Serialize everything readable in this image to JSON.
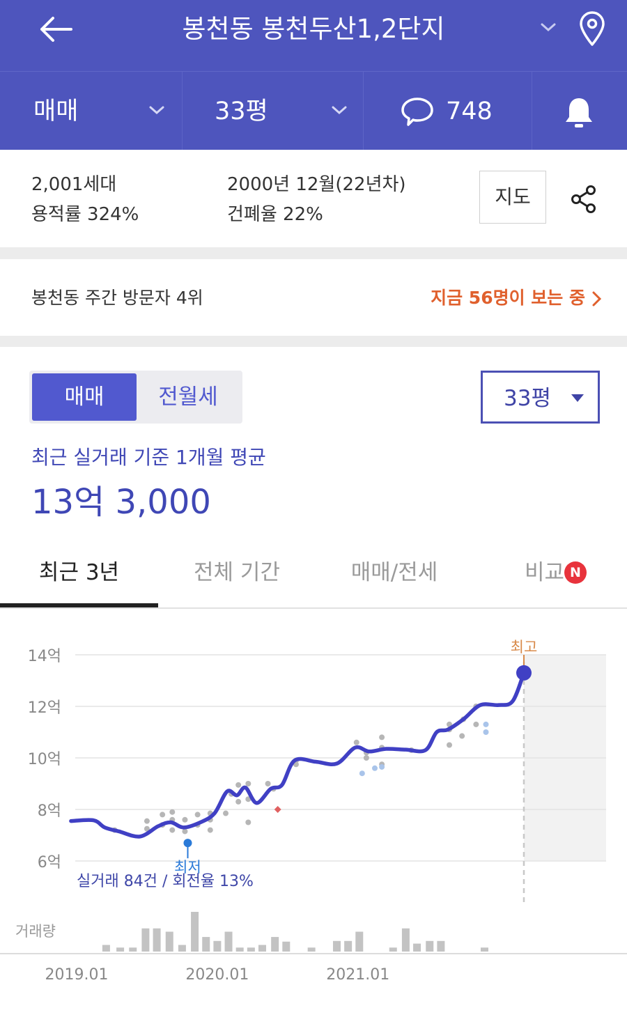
{
  "header": {
    "title": "봉천동 봉천두산1,2단지",
    "trade_type": "매매",
    "size": "33평",
    "comment_count": "748",
    "colors": {
      "background": "#4e55bd",
      "text": "#ffffff"
    }
  },
  "info": {
    "households": "2,001세대",
    "built": "2000년 12월(22년차)",
    "far": "용적률 324%",
    "bcr": "건폐율 22%",
    "map_button": "지도"
  },
  "rank": {
    "text": "봉천동 주간 방문자 4위",
    "viewers": "지금 56명이 보는 중"
  },
  "segment": {
    "sale": "매매",
    "rent": "전월세"
  },
  "size_select": {
    "value": "33평"
  },
  "average": {
    "label": "최근 실거래 기준 1개월 평균",
    "value": "13억 3,000"
  },
  "tabs": [
    {
      "label": "최근 3년",
      "active": true
    },
    {
      "label": "전체 기간",
      "active": false
    },
    {
      "label": "매매/전세",
      "active": false
    },
    {
      "label": "비교",
      "active": false
    }
  ],
  "tab_badge": "N",
  "chart_data": {
    "type": "line",
    "y_ticks": [
      "14억",
      "12억",
      "10억",
      "8억",
      "6억"
    ],
    "y_tick_values": [
      14,
      12,
      10,
      8,
      6
    ],
    "ylim": [
      6,
      14
    ],
    "x_ticks": [
      "2019.01",
      "2020.01",
      "2021.01"
    ],
    "high_label": "최고",
    "low_label": "최저",
    "summary": "실거래 84건 / 회전율 13%",
    "volume_label": "거래량",
    "line_color": "#4040c4",
    "series": [
      {
        "values": [
          [
            2018.96,
            7.55
          ],
          [
            2019.12,
            7.58
          ],
          [
            2019.2,
            7.3
          ],
          [
            2019.3,
            7.15
          ],
          [
            2019.45,
            6.95
          ],
          [
            2019.58,
            7.35
          ],
          [
            2019.67,
            7.5
          ],
          [
            2019.76,
            7.3
          ],
          [
            2019.88,
            7.5
          ],
          [
            2019.98,
            7.85
          ],
          [
            2020.07,
            8.7
          ],
          [
            2020.14,
            8.55
          ],
          [
            2020.2,
            8.85
          ],
          [
            2020.28,
            8.25
          ],
          [
            2020.38,
            8.8
          ],
          [
            2020.46,
            8.95
          ],
          [
            2020.55,
            9.9
          ],
          [
            2020.7,
            9.85
          ],
          [
            2020.85,
            9.78
          ],
          [
            2020.98,
            10.4
          ],
          [
            2021.08,
            10.25
          ],
          [
            2021.2,
            10.35
          ],
          [
            2021.34,
            10.32
          ],
          [
            2021.48,
            10.3
          ],
          [
            2021.56,
            11.0
          ],
          [
            2021.64,
            11.1
          ],
          [
            2021.75,
            11.5
          ],
          [
            2021.87,
            12.05
          ],
          [
            2022.0,
            12.05
          ],
          [
            2022.1,
            12.2
          ],
          [
            2022.18,
            13.3
          ]
        ]
      }
    ],
    "transactions": [
      [
        2019.27,
        7.2
      ],
      [
        2019.5,
        7.55
      ],
      [
        2019.5,
        7.25
      ],
      [
        2019.61,
        7.8
      ],
      [
        2019.61,
        7.4
      ],
      [
        2019.68,
        7.9
      ],
      [
        2019.68,
        7.6
      ],
      [
        2019.68,
        7.2
      ],
      [
        2019.77,
        7.6
      ],
      [
        2019.77,
        7.15
      ],
      [
        2019.86,
        7.8
      ],
      [
        2019.86,
        7.4
      ],
      [
        2019.95,
        7.85
      ],
      [
        2019.95,
        7.6
      ],
      [
        2019.95,
        7.2
      ],
      [
        2020.06,
        7.85
      ],
      [
        2020.1,
        8.6
      ],
      [
        2020.15,
        8.95
      ],
      [
        2020.15,
        8.3
      ],
      [
        2020.22,
        9.0
      ],
      [
        2020.22,
        8.4
      ],
      [
        2020.22,
        7.5
      ],
      [
        2020.36,
        9.0
      ],
      [
        2020.4,
        8.8
      ],
      [
        2020.56,
        9.9
      ],
      [
        2020.56,
        9.75
      ],
      [
        2020.99,
        10.6
      ],
      [
        2021.06,
        10.0
      ],
      [
        2021.06,
        10.2
      ],
      [
        2021.17,
        9.75
      ],
      [
        2021.17,
        10.4
      ],
      [
        2021.17,
        10.8
      ],
      [
        2021.38,
        10.3
      ],
      [
        2021.65,
        11.3
      ],
      [
        2021.65,
        11.1
      ],
      [
        2021.65,
        10.5
      ],
      [
        2021.75,
        11.5
      ],
      [
        2021.74,
        10.85
      ],
      [
        2021.84,
        12.0
      ],
      [
        2021.84,
        11.3
      ]
    ],
    "jeonse_transactions": [
      [
        2021.03,
        9.4
      ],
      [
        2021.12,
        9.6
      ],
      [
        2021.17,
        9.65
      ],
      [
        2021.91,
        11.3
      ],
      [
        2021.91,
        11.0
      ]
    ],
    "red_point": [
      2020.43,
      8.0
    ],
    "low_point": [
      2019.79,
      6.7
    ],
    "high_point": [
      2022.18,
      13.3
    ],
    "volume": [
      [
        2019.21,
        1
      ],
      [
        2019.31,
        0.6
      ],
      [
        2019.4,
        0.6
      ],
      [
        2019.49,
        3.5
      ],
      [
        2019.57,
        3.5
      ],
      [
        2019.66,
        3
      ],
      [
        2019.75,
        1
      ],
      [
        2019.84,
        6
      ],
      [
        2019.92,
        2.2
      ],
      [
        2020.0,
        1.6
      ],
      [
        2020.08,
        3
      ],
      [
        2020.16,
        0.6
      ],
      [
        2020.24,
        0.6
      ],
      [
        2020.32,
        1
      ],
      [
        2020.41,
        2.2
      ],
      [
        2020.49,
        1.5
      ],
      [
        2020.67,
        0.6
      ],
      [
        2020.85,
        1.6
      ],
      [
        2020.93,
        1.6
      ],
      [
        2021.01,
        3
      ],
      [
        2021.25,
        0.6
      ],
      [
        2021.34,
        3.5
      ],
      [
        2021.42,
        1.2
      ],
      [
        2021.51,
        1.6
      ],
      [
        2021.59,
        1.6
      ],
      [
        2021.9,
        0.6
      ]
    ]
  }
}
